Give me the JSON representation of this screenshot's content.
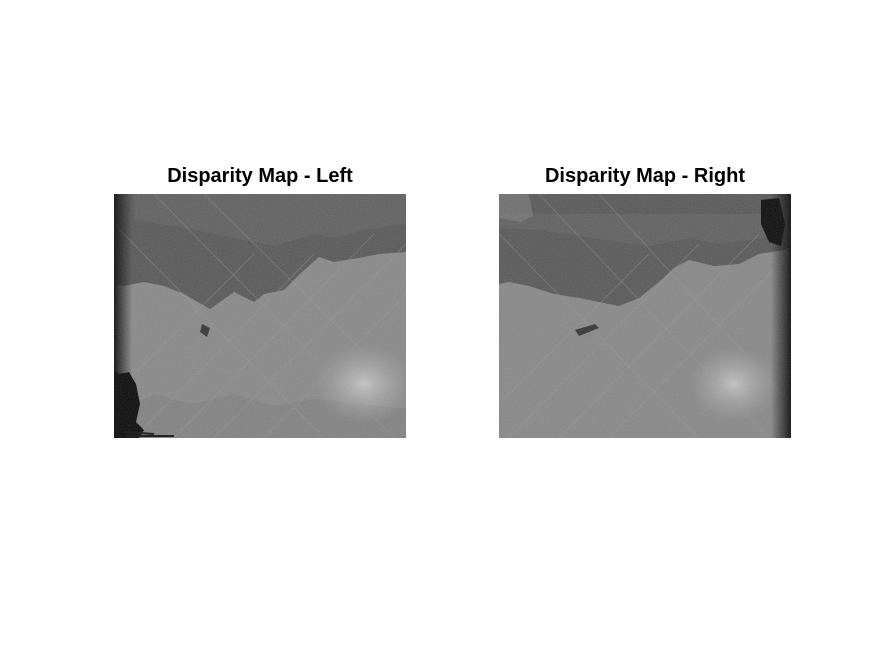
{
  "figure": {
    "panels": [
      {
        "title": "Disparity Map - Left"
      },
      {
        "title": "Disparity Map - Right"
      }
    ]
  },
  "colors": {
    "background": "#ffffff",
    "far_region": "#585858",
    "near_region": "#8a8a8a",
    "bright_patch": "#bdbdbd",
    "invalid": "#0a0a0a"
  }
}
